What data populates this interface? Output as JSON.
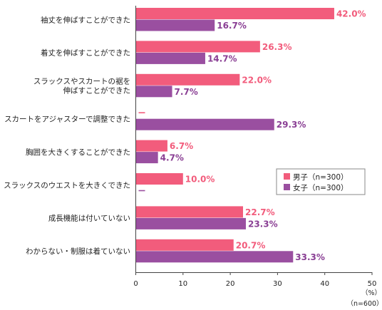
{
  "chart_data": {
    "type": "bar",
    "orientation": "horizontal",
    "categories": [
      [
        "袖丈を伸ばすことができた"
      ],
      [
        "着丈を伸ばすことができた"
      ],
      [
        "スラックスやスカートの裾を",
        "伸ばすことができた"
      ],
      [
        "スカートをアジャスターで調整できた"
      ],
      [
        "胸囲を大きくすることができた"
      ],
      [
        "スラックスのウエストを大きくできた"
      ],
      [
        "成長機能は付いていない"
      ],
      [
        "わからない・制服は着ていない"
      ]
    ],
    "series": [
      {
        "name": "男子（n=300）",
        "color": "#f25c7c",
        "label_color": "#f25c7c",
        "values": [
          42.0,
          26.3,
          22.0,
          null,
          6.7,
          10.0,
          22.7,
          20.7
        ],
        "labels": [
          "42.0%",
          "26.3%",
          "22.0%",
          "–",
          "6.7%",
          "10.0%",
          "22.7%",
          "20.7%"
        ]
      },
      {
        "name": "女子（n=300）",
        "color": "#9a4fa0",
        "label_color": "#8a3f94",
        "values": [
          16.7,
          14.7,
          7.7,
          29.3,
          4.7,
          null,
          23.3,
          33.3
        ],
        "labels": [
          "16.7%",
          "14.7%",
          "7.7%",
          "29.3%",
          "4.7%",
          "–",
          "23.3%",
          "33.3%"
        ]
      }
    ],
    "xlim": [
      0,
      50
    ],
    "xticks": [
      "0",
      "10",
      "20",
      "30",
      "40",
      "50"
    ],
    "unit_label": "（%）",
    "n_label": "（n=600）",
    "legend_position": "right-middle"
  }
}
